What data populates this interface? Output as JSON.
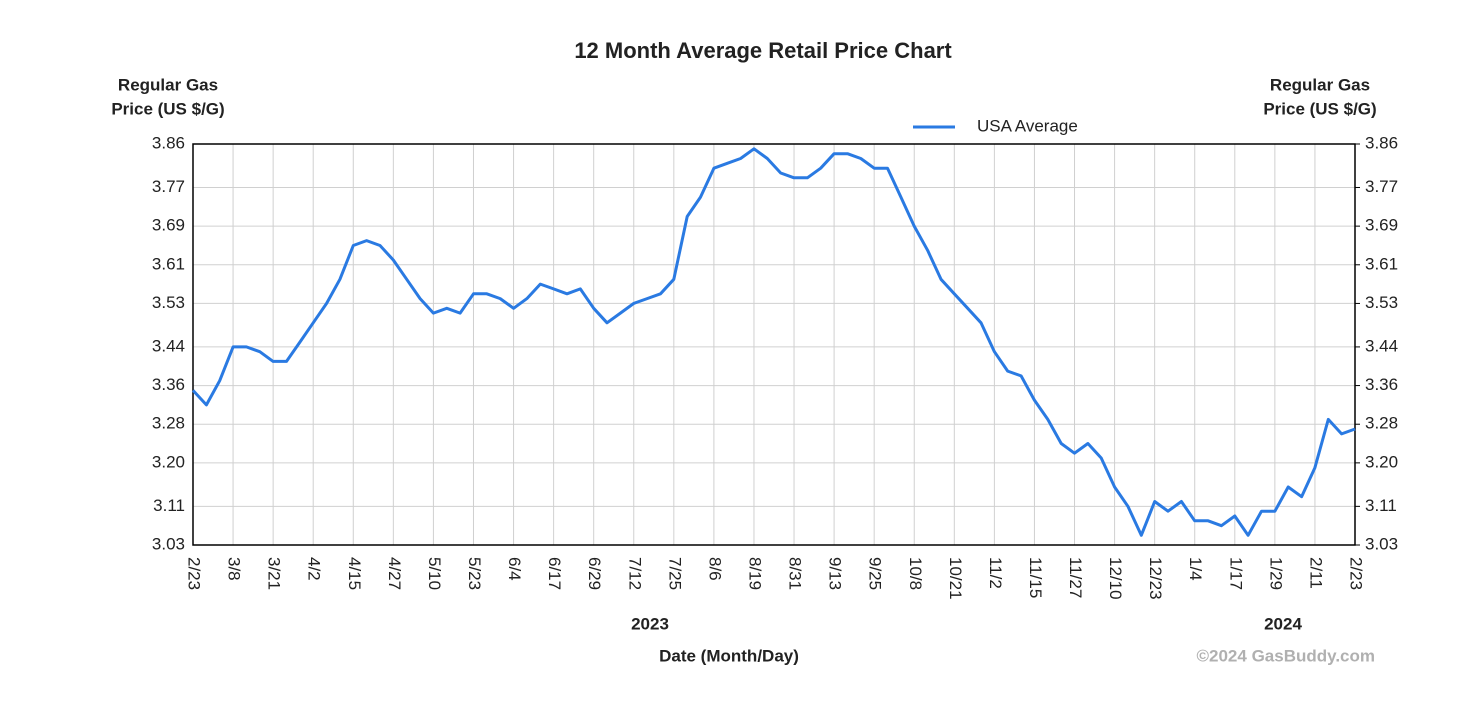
{
  "chart_data": {
    "type": "line",
    "title": "12 Month Average Retail Price Chart",
    "y_label": [
      "Regular Gas",
      "Price (US $/G)"
    ],
    "y2_label": [
      "Regular Gas",
      "Price (US $/G)"
    ],
    "x_label": "Date (Month/Day)",
    "year_labels": [
      "2023",
      "2024"
    ],
    "credit": "©2024 GasBuddy.com",
    "categories": [
      "2/23",
      null,
      null,
      "3/8",
      null,
      null,
      "3/21",
      null,
      null,
      "4/2",
      null,
      null,
      "4/15",
      null,
      null,
      "4/27",
      null,
      null,
      "5/10",
      null,
      null,
      "5/23",
      null,
      null,
      "6/4",
      null,
      null,
      "6/17",
      null,
      null,
      "6/29",
      null,
      null,
      "7/12",
      null,
      null,
      "7/25",
      null,
      null,
      "8/6",
      null,
      null,
      "8/19",
      null,
      null,
      "8/31",
      null,
      null,
      "9/13",
      null,
      null,
      "9/25",
      null,
      null,
      "10/8",
      null,
      null,
      "10/21",
      null,
      null,
      "11/2",
      null,
      null,
      "11/15",
      null,
      null,
      "11/27",
      null,
      null,
      "12/10",
      null,
      null,
      "12/23",
      null,
      null,
      "1/4",
      null,
      null,
      "1/17",
      null,
      null,
      "1/29",
      null,
      null,
      "2/11",
      null,
      null,
      "2/23"
    ],
    "series": [
      {
        "name": "USA Average",
        "color": "#2a7ae2",
        "values": [
          3.35,
          3.32,
          3.37,
          3.44,
          3.44,
          3.43,
          3.41,
          3.41,
          3.45,
          3.49,
          3.53,
          3.58,
          3.65,
          3.66,
          3.65,
          3.62,
          3.58,
          3.54,
          3.51,
          3.52,
          3.51,
          3.55,
          3.55,
          3.54,
          3.52,
          3.54,
          3.57,
          3.56,
          3.55,
          3.56,
          3.52,
          3.49,
          3.51,
          3.53,
          3.54,
          3.55,
          3.58,
          3.71,
          3.75,
          3.81,
          3.82,
          3.83,
          3.85,
          3.83,
          3.8,
          3.79,
          3.79,
          3.81,
          3.84,
          3.84,
          3.83,
          3.81,
          3.81,
          3.75,
          3.69,
          3.64,
          3.58,
          3.55,
          3.52,
          3.49,
          3.43,
          3.39,
          3.38,
          3.33,
          3.29,
          3.24,
          3.22,
          3.24,
          3.21,
          3.15,
          3.11,
          3.05,
          3.12,
          3.1,
          3.12,
          3.08,
          3.08,
          3.07,
          3.09,
          3.05,
          3.1,
          3.1,
          3.15,
          3.13,
          3.19,
          3.29,
          3.26,
          3.27
        ]
      }
    ],
    "ylim": [
      3.03,
      3.86
    ],
    "yticks": [
      3.03,
      3.11,
      {
        "value": 3.2,
        "label": "3.20"
      },
      3.28,
      3.36,
      3.44,
      3.53,
      3.61,
      3.69,
      3.77,
      3.86
    ],
    "y2lim": [
      3.03,
      3.86
    ],
    "y2ticks": [
      3.03,
      3.11,
      {
        "value": 3.2,
        "label": "3.20"
      },
      3.28,
      3.36,
      3.44,
      3.53,
      3.61,
      3.69,
      3.77,
      3.86
    ],
    "grid": true,
    "legend": "top-right"
  }
}
